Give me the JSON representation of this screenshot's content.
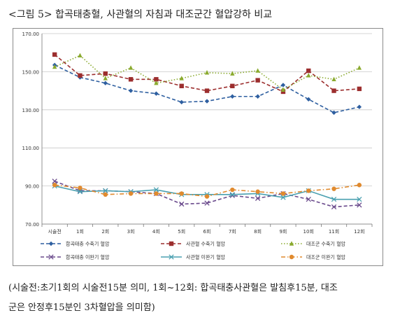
{
  "figure": {
    "title": "<그림 5> 합곡태충혈, 사관혈의 자침과 대조군간 혈압강하 비교",
    "notes": [
      "(시술전:초기1회의 시술전15분 의미, 1회~12회: 합곡태충사관혈은 발침후15분, 대조",
      "군은 안정후15분인 3차혈압을 의미함)"
    ]
  },
  "chart_data": {
    "type": "line",
    "categories": [
      "시술전",
      "1회",
      "2회",
      "3회",
      "4회",
      "5회",
      "6회",
      "7회",
      "8회",
      "9회",
      "10회",
      "11회",
      "12회"
    ],
    "ylim": [
      70,
      170
    ],
    "yticks": [
      "170.00",
      "150.00",
      "130.00",
      "110.00",
      "90.00",
      "70.00"
    ],
    "ytick_values": [
      170,
      150,
      130,
      110,
      90,
      70
    ],
    "grid": "horizontal",
    "legend_position": "bottom",
    "series": [
      {
        "name": "합곡태충 수축기 혈압",
        "color": "#2e5fa0",
        "dash": "dashed",
        "marker": "diamond",
        "values": [
          153.5,
          147,
          144,
          140,
          138.5,
          134,
          134.5,
          137,
          137,
          143,
          135.5,
          128.5,
          131.5
        ]
      },
      {
        "name": "사관혈 수축기 혈압",
        "color": "#9c2e2e",
        "dash": "dashed",
        "marker": "square",
        "values": [
          159,
          148,
          149,
          146,
          146,
          142.5,
          140,
          142.5,
          145.5,
          139.5,
          150.5,
          140,
          141
        ]
      },
      {
        "name": "대조군 수축기 혈압",
        "color": "#8aaa2e",
        "dash": "dotted",
        "marker": "triangle",
        "values": [
          152.5,
          158.5,
          146.5,
          152,
          144,
          146.5,
          149.5,
          149,
          150.5,
          140.5,
          148,
          146,
          152
        ]
      },
      {
        "name": "합곡태충 이완기 혈압",
        "color": "#6a4a8c",
        "dash": "dashed",
        "marker": "x",
        "values": [
          92.5,
          87.5,
          87.5,
          87,
          86,
          80.5,
          81,
          85,
          83.5,
          86,
          83,
          79,
          80
        ]
      },
      {
        "name": "사관혈 이완기 혈압",
        "color": "#4aa0b0",
        "dash": "solid",
        "marker": "x",
        "values": [
          90,
          87,
          87.5,
          87,
          88,
          85.5,
          85.5,
          85.5,
          86,
          84,
          87.5,
          83,
          83
        ]
      },
      {
        "name": "대조군 이완기 혈압",
        "color": "#e08a2e",
        "dash": "dashdot",
        "marker": "circle",
        "values": [
          90.5,
          89,
          85.5,
          86,
          86,
          86,
          84.5,
          88,
          87,
          86,
          87.5,
          88.5,
          90.5
        ]
      }
    ]
  }
}
